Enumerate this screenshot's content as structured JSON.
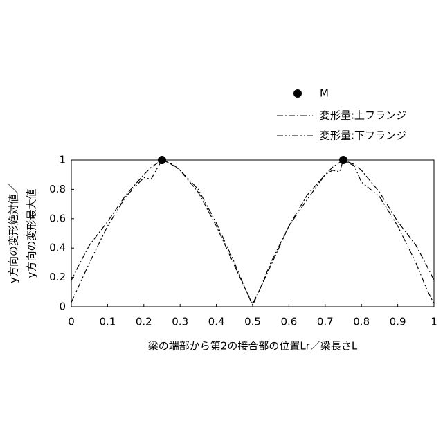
{
  "chart_data": {
    "type": "line",
    "x_label": "梁の端部から第2の接合部の位置Lr／梁長さL",
    "y_label": [
      "y方向の変形絶対値／",
      "y方向の変形最大値"
    ],
    "xlim": [
      0,
      1
    ],
    "ylim": [
      0,
      1
    ],
    "xticks": [
      0,
      0.1,
      0.2,
      0.3,
      0.4,
      0.5,
      0.6,
      0.7,
      0.8,
      0.9,
      1
    ],
    "yticks": [
      0,
      0.2,
      0.4,
      0.6,
      0.8,
      1
    ],
    "grid": false,
    "series": [
      {
        "name": "M",
        "kind": "scatter",
        "color": "#000000",
        "x": [
          0.25,
          0.75
        ],
        "values": [
          1,
          1
        ]
      },
      {
        "name": "変形量:上フランジ",
        "kind": "dashdot",
        "color": "#000000",
        "x": [
          0,
          0.02,
          0.05,
          0.1,
          0.15,
          0.2,
          0.22,
          0.25,
          0.28,
          0.3,
          0.35,
          0.4,
          0.45,
          0.48,
          0.5,
          0.52,
          0.55,
          0.6,
          0.65,
          0.7,
          0.72,
          0.75,
          0.78,
          0.8,
          0.85,
          0.9,
          0.95,
          0.98,
          1
        ],
        "values": [
          0.18,
          0.28,
          0.42,
          0.58,
          0.76,
          0.9,
          0.95,
          1,
          0.97,
          0.93,
          0.78,
          0.55,
          0.28,
          0.12,
          0.01,
          0.12,
          0.28,
          0.55,
          0.76,
          0.9,
          0.95,
          1,
          0.97,
          0.93,
          0.78,
          0.58,
          0.42,
          0.28,
          0.18
        ]
      },
      {
        "name": "変形量:下フランジ",
        "kind": "dashdotdot",
        "color": "#000000",
        "x": [
          0,
          0.05,
          0.1,
          0.15,
          0.2,
          0.22,
          0.25,
          0.27,
          0.3,
          0.35,
          0.4,
          0.45,
          0.48,
          0.5,
          0.52,
          0.55,
          0.6,
          0.65,
          0.7,
          0.72,
          0.74,
          0.75,
          0.78,
          0.8,
          0.85,
          0.9,
          0.95,
          0.98,
          1
        ],
        "values": [
          0.03,
          0.3,
          0.55,
          0.75,
          0.88,
          0.87,
          1,
          0.98,
          0.93,
          0.8,
          0.57,
          0.3,
          0.12,
          0.02,
          0.12,
          0.3,
          0.55,
          0.73,
          0.9,
          0.93,
          0.92,
          1,
          0.96,
          0.85,
          0.75,
          0.55,
          0.3,
          0.12,
          0.02
        ]
      }
    ]
  }
}
